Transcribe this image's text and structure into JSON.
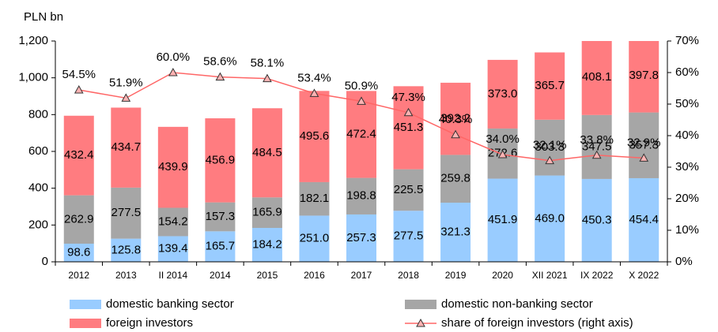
{
  "chart_data": {
    "type": "bar",
    "stacked": true,
    "ylabel": "PLN bn",
    "categories": [
      "2012",
      "2013",
      "II 2014",
      "2014",
      "2015",
      "2016",
      "2017",
      "2018",
      "2019",
      "2020",
      "XII 2021",
      "IX 2022",
      "X 2022"
    ],
    "series": [
      {
        "name": "domestic banking sector",
        "color": "#99ccff",
        "values": [
          98.6,
          125.8,
          139.4,
          165.7,
          184.2,
          251.0,
          257.3,
          277.5,
          321.3,
          451.9,
          469.0,
          450.3,
          454.4
        ],
        "value_labels": [
          "98.6",
          "125.8",
          "139.4",
          "165.7",
          "184.2",
          "251.0",
          "257.3",
          "277.5",
          "321.3",
          "451.9",
          "469.0",
          "450.3",
          "454.4"
        ]
      },
      {
        "name": "domestic non-banking sector",
        "color": "#a6a6a6",
        "values": [
          262.9,
          277.5,
          154.2,
          157.3,
          165.9,
          182.1,
          198.8,
          225.5,
          259.8,
          272.6,
          303.3,
          347.5,
          357.3
        ],
        "value_labels": [
          "262.9",
          "277.5",
          "154.2",
          "157.3",
          "165.9",
          "182.1",
          "198.8",
          "225.5",
          "259.8",
          "272.6",
          "303.3",
          "347.5",
          "357.3"
        ]
      },
      {
        "name": "foreign investors",
        "color": "#ff7c80",
        "values": [
          432.4,
          434.7,
          439.9,
          456.9,
          484.5,
          495.6,
          472.4,
          451.3,
          392.2,
          373.0,
          365.7,
          408.1,
          397.8
        ],
        "value_labels": [
          "432.4",
          "434.7",
          "439.9",
          "456.9",
          "484.5",
          "495.6",
          "472.4",
          "451.3",
          "392.2",
          "373.0",
          "365.7",
          "408.1",
          "397.8"
        ]
      },
      {
        "name": "share of foreign investors (right axis)",
        "color": "#ff6666",
        "type": "line",
        "axis": "y2",
        "values": [
          54.5,
          51.9,
          60.0,
          58.6,
          58.1,
          53.4,
          50.9,
          47.3,
          40.3,
          34.0,
          32.1,
          33.8,
          32.9
        ],
        "value_labels": [
          "54.5%",
          "51.9%",
          "60.0%",
          "58.6%",
          "58.1%",
          "53.4%",
          "50.9%",
          "47.3%",
          "40.3%",
          "34.0%",
          "32.1%",
          "33.8%",
          "32.9%"
        ]
      }
    ],
    "ylim": [
      0,
      1200
    ],
    "yticks": [
      0,
      200,
      400,
      600,
      800,
      {
        "value": 1000,
        "label": "1,000"
      },
      {
        "value": 1200,
        "label": "1,200"
      }
    ],
    "y2lim": [
      0,
      70
    ],
    "y2ticks": [
      {
        "value": 0,
        "label": "0%"
      },
      {
        "value": 10,
        "label": "10%"
      },
      {
        "value": 20,
        "label": "20%"
      },
      {
        "value": 30,
        "label": "30%"
      },
      {
        "value": 40,
        "label": "40%"
      },
      {
        "value": 50,
        "label": "50%"
      },
      {
        "value": 60,
        "label": "60%"
      },
      {
        "value": 70,
        "label": "70%"
      }
    ],
    "grid": false
  }
}
